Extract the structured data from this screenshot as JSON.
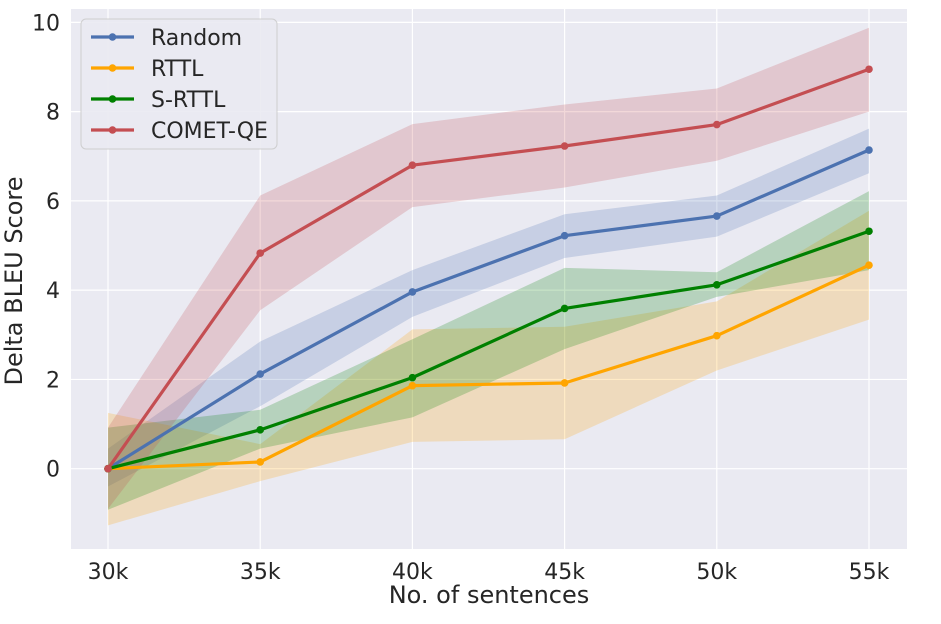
{
  "chart_data": {
    "type": "line",
    "title": "",
    "xlabel": "No. of sentences",
    "ylabel": "Delta BLEU Score",
    "categories": [
      "30k",
      "35k",
      "40k",
      "45k",
      "50k",
      "55k"
    ],
    "ylim": [
      -1.8,
      10.3
    ],
    "yticks": [
      0,
      2,
      4,
      6,
      8,
      10
    ],
    "grid": true,
    "legend_position": "top-left",
    "series": [
      {
        "name": "Random",
        "color": "#4c72b0",
        "values": [
          0,
          2.12,
          3.96,
          5.22,
          5.66,
          7.14
        ],
        "lower": [
          -0.4,
          1.4,
          3.4,
          4.72,
          5.2,
          6.62
        ],
        "upper": [
          0.45,
          2.85,
          4.45,
          5.7,
          6.12,
          7.62
        ]
      },
      {
        "name": "RTTL",
        "color": "#ffa500",
        "values": [
          0,
          0.15,
          1.86,
          1.92,
          2.98,
          4.56
        ],
        "lower": [
          -1.27,
          -0.28,
          0.6,
          0.66,
          2.2,
          3.34
        ],
        "upper": [
          1.25,
          0.55,
          3.12,
          3.18,
          3.75,
          5.78
        ]
      },
      {
        "name": "S-RTTL",
        "color": "#008000",
        "values": [
          0,
          0.87,
          2.04,
          3.59,
          4.12,
          5.32
        ],
        "lower": [
          -0.92,
          0.45,
          1.15,
          2.68,
          3.85,
          4.45
        ],
        "upper": [
          0.92,
          1.32,
          2.9,
          4.5,
          4.4,
          6.22
        ]
      },
      {
        "name": "COMET-QE",
        "color": "#c44e52",
        "values": [
          0,
          4.83,
          6.8,
          7.23,
          7.71,
          8.95
        ],
        "lower": [
          -0.9,
          3.55,
          5.86,
          6.3,
          6.9,
          8.0
        ],
        "upper": [
          0.92,
          6.12,
          7.72,
          8.16,
          8.52,
          9.88
        ]
      }
    ]
  }
}
